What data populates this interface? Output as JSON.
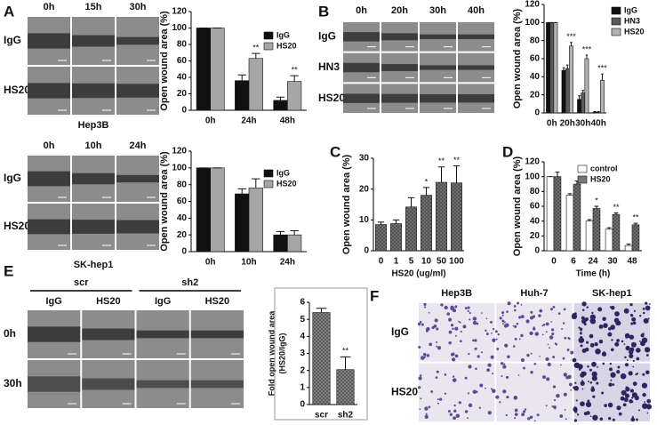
{
  "panel_labels": [
    "A",
    "B",
    "C",
    "D",
    "E",
    "F"
  ],
  "image_panels": [
    {
      "columns": [
        "0h",
        "15h",
        "30h"
      ],
      "rows": [
        "IgG",
        "HS20"
      ],
      "caption": "Hep3B"
    },
    {
      "columns": [
        "0h",
        "10h",
        "24h"
      ],
      "rows": [
        "IgG",
        "HS20"
      ],
      "caption": "SK-hep1"
    },
    {
      "columns": [
        "0h",
        "20h",
        "30h",
        "40h"
      ],
      "rows": [
        "IgG",
        "HN3",
        "HS20"
      ]
    },
    {
      "groups": [
        "scr",
        "sh2"
      ],
      "columns": [
        "IgG",
        "HS20",
        "IgG",
        "HS20"
      ],
      "rows": [
        "0h",
        "30h"
      ]
    },
    {
      "columns": [
        "Hep3B",
        "Huh-7",
        "SK-hep1"
      ],
      "rows": [
        "IgG",
        "HS20"
      ]
    }
  ],
  "chart_data": [
    {
      "type": "bar",
      "categories": [
        "0h",
        "24h",
        "48h"
      ],
      "ylabel": [
        "Open wound area (%)"
      ],
      "ylim": [
        0,
        120
      ],
      "yticks": [
        0,
        20,
        40,
        60,
        80,
        100,
        120
      ],
      "legend": "upper right",
      "series": [
        {
          "name": "IgG",
          "color": "#111111",
          "values": [
            100,
            36,
            12
          ],
          "errors": [
            0,
            7,
            4
          ]
        },
        {
          "name": "HS20",
          "color": "#a6a6a6",
          "values": [
            100,
            63,
            35
          ],
          "errors": [
            0,
            6,
            7
          ],
          "significance": [
            null,
            "**",
            "**"
          ]
        }
      ]
    },
    {
      "type": "bar",
      "categories": [
        "0h",
        "10h",
        "24h"
      ],
      "ylabel": [
        "Open wound area (%)"
      ],
      "ylim": [
        0,
        120
      ],
      "yticks": [
        0,
        20,
        40,
        60,
        80,
        100,
        120
      ],
      "legend": "upper right",
      "series": [
        {
          "name": "IgG",
          "color": "#111111",
          "values": [
            100,
            69,
            20
          ],
          "errors": [
            0,
            6,
            4
          ]
        },
        {
          "name": "HS20",
          "color": "#a6a6a6",
          "values": [
            100,
            76,
            20
          ],
          "errors": [
            0,
            11,
            5
          ]
        }
      ]
    },
    {
      "type": "bar",
      "categories": [
        "0h",
        "20h",
        "30h",
        "40h"
      ],
      "ylabel": [
        "Open wound area (%)"
      ],
      "ylim": [
        0,
        120
      ],
      "yticks": [
        0,
        20,
        40,
        60,
        80,
        100,
        120
      ],
      "legend": "upper right",
      "series": [
        {
          "name": "IgG",
          "color": "#111111",
          "values": [
            100,
            47,
            15,
            1
          ],
          "errors": [
            0,
            3,
            4,
            0.5
          ]
        },
        {
          "name": "HN3",
          "color": "#595959",
          "values": [
            100,
            49,
            22,
            1
          ],
          "errors": [
            0,
            4,
            3,
            0.5
          ]
        },
        {
          "name": "HS20",
          "color": "#b3b3b3",
          "values": [
            100,
            74,
            60,
            36
          ],
          "errors": [
            0,
            4,
            4,
            7
          ],
          "significance": [
            null,
            "***",
            "***",
            "***"
          ]
        }
      ]
    },
    {
      "type": "bar",
      "categories": [
        "0",
        "1",
        "5",
        "10",
        "50",
        "100"
      ],
      "xlabel": "HS20 (ug/ml)",
      "ylabel": [
        "Open wound area (%)"
      ],
      "ylim": [
        0,
        30
      ],
      "yticks": [
        0,
        10,
        20,
        30
      ],
      "pattern": "crosshatch",
      "series": [
        {
          "color": "#777777",
          "values": [
            8.5,
            8.8,
            14.2,
            18,
            22.2,
            22
          ],
          "errors": [
            0.8,
            1.2,
            3,
            2.5,
            5,
            5.5
          ],
          "significance": [
            null,
            null,
            null,
            "*",
            "**",
            "**"
          ]
        }
      ]
    },
    {
      "type": "bar",
      "categories": [
        "0",
        "6",
        "24",
        "30",
        "48"
      ],
      "xlabel": "Time (h)",
      "ylabel": [
        "Open wound area (%)"
      ],
      "ylim": [
        0,
        120
      ],
      "yticks": [
        0,
        20,
        40,
        60,
        80,
        100,
        120
      ],
      "legend": "upper right",
      "pattern": "crosshatch",
      "series": [
        {
          "name": "control",
          "color": "#ffffff",
          "values": [
            100,
            75,
            40,
            29,
            7
          ],
          "errors": [
            0,
            2,
            2,
            2,
            2
          ]
        },
        {
          "name": "HS20",
          "color": "#777777",
          "values": [
            100,
            90,
            57,
            49,
            35
          ],
          "errors": [
            6,
            4,
            3,
            2,
            2
          ],
          "significance": [
            null,
            null,
            "*",
            "**",
            "**"
          ]
        }
      ]
    },
    {
      "type": "bar",
      "categories": [
        "scr",
        "sh2"
      ],
      "ylabel": [
        "Fold open wound area",
        "(HS20/IgG)"
      ],
      "ylim": [
        0,
        6
      ],
      "yticks": [
        0,
        1,
        2,
        3,
        4,
        5,
        6
      ],
      "pattern": "crosshatch",
      "series": [
        {
          "color": "#888888",
          "values": [
            5.4,
            2.05
          ],
          "errors": [
            0.25,
            0.75
          ],
          "significance": [
            null,
            "**"
          ]
        }
      ]
    }
  ]
}
